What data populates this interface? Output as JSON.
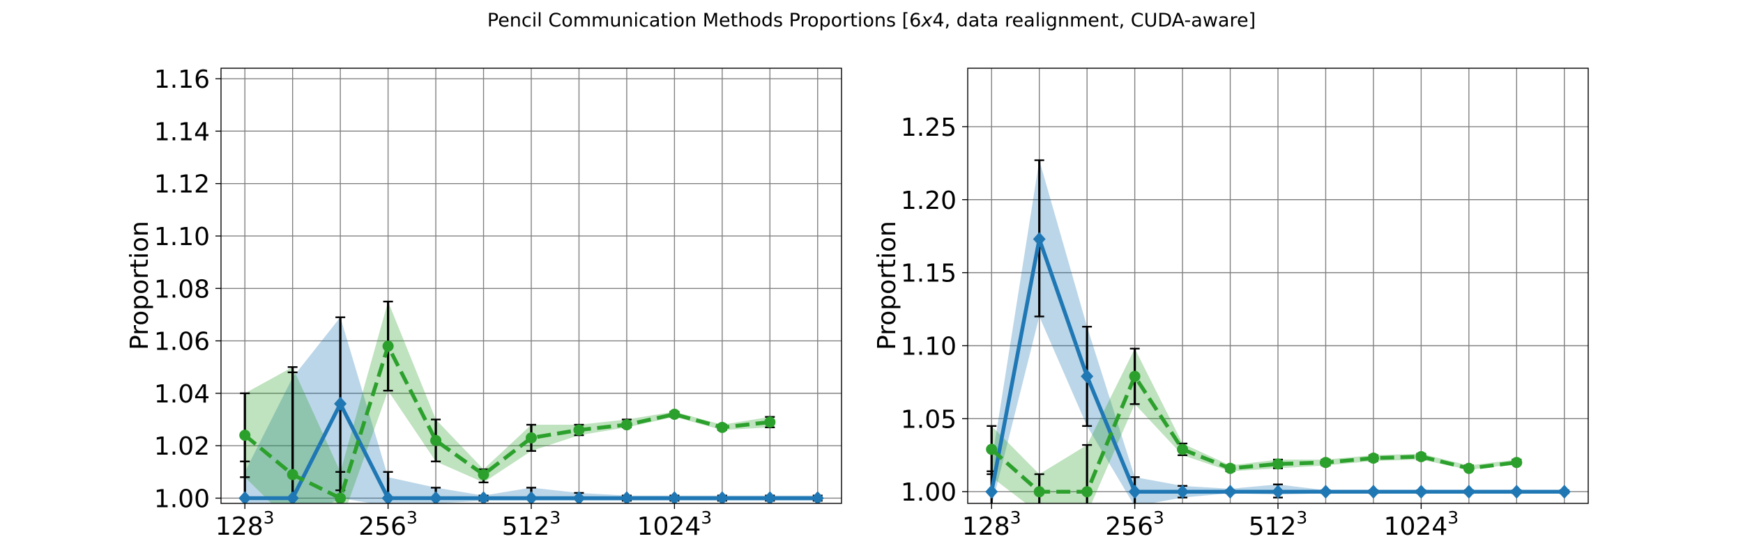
{
  "title": "Pencil Communication Methods Proportions [6x4, data realignment, CUDA-aware]",
  "title_parts": {
    "before": "Pencil Communication Methods Proportions [6",
    "times": "x",
    "after": "4, data realignment, CUDA-aware]"
  },
  "colors": {
    "series_a": "#1f77b4",
    "series_b": "#2ca02c",
    "errorbar": "#000000",
    "grid": "#808080"
  },
  "chart_data": [
    {
      "type": "line",
      "ylabel": "Proportion",
      "xlabel": "",
      "grid": true,
      "xlim": [
        -0.5,
        12.5
      ],
      "ylim": [
        0.998,
        1.164
      ],
      "x_ticks": [
        {
          "pos": 0,
          "base": "128",
          "exp": "3"
        },
        {
          "pos": 3,
          "base": "256",
          "exp": "3"
        },
        {
          "pos": 6,
          "base": "512",
          "exp": "3"
        },
        {
          "pos": 9,
          "base": "1024",
          "exp": "3"
        }
      ],
      "x_gridlines": [
        0,
        1,
        2,
        3,
        4,
        5,
        6,
        7,
        8,
        9,
        10,
        11,
        12
      ],
      "y_ticks": [
        "1.00",
        "1.02",
        "1.04",
        "1.06",
        "1.08",
        "1.10",
        "1.12",
        "1.14",
        "1.16"
      ],
      "series": [
        {
          "color": "blue",
          "marker": "diamond",
          "linestyle": "solid",
          "x": [
            0,
            1,
            2,
            3,
            4,
            5,
            6,
            7,
            8,
            9,
            10,
            11,
            12
          ],
          "y": [
            1.0,
            1.0,
            1.036,
            1.0,
            1.0,
            1.0,
            1.0,
            1.0,
            1.0,
            1.0,
            1.0,
            1.0,
            1.0
          ],
          "band_low": [
            0.99,
            0.99,
            1.0,
            0.997,
            0.998,
            0.999,
            0.999,
            0.999,
            0.999,
            0.999,
            0.999,
            0.999,
            0.999
          ],
          "band_high": [
            1.01,
            1.046,
            1.069,
            1.008,
            1.004,
            1.001,
            1.004,
            1.002,
            1.001,
            1.001,
            1.001,
            1.001,
            1.001
          ],
          "err_low": [
            0.986,
            0.986,
            1.003,
            0.99,
            0.996,
            0.999,
            0.996,
            0.997,
            0.999,
            0.999,
            0.999,
            0.999,
            0.999
          ],
          "err_high": [
            1.014,
            1.048,
            1.069,
            1.01,
            1.004,
            1.001,
            1.004,
            1.002,
            1.001,
            1.001,
            1.001,
            1.001,
            1.001
          ]
        },
        {
          "color": "green",
          "marker": "circle",
          "linestyle": "dashed",
          "x": [
            0,
            1,
            2,
            3,
            4,
            5,
            6,
            7,
            8,
            9,
            10,
            11
          ],
          "y": [
            1.024,
            1.009,
            1.0,
            1.058,
            1.022,
            1.009,
            1.023,
            1.026,
            1.028,
            1.032,
            1.027,
            1.029
          ],
          "band_low": [
            1.008,
            0.99,
            0.99,
            1.041,
            1.014,
            1.006,
            1.018,
            1.024,
            1.027,
            1.031,
            1.026,
            1.027
          ],
          "band_high": [
            1.04,
            1.05,
            1.01,
            1.075,
            1.03,
            1.011,
            1.028,
            1.028,
            1.03,
            1.033,
            1.028,
            1.031
          ],
          "err_low": [
            1.008,
            0.983,
            0.99,
            1.041,
            1.014,
            1.006,
            1.018,
            1.024,
            1.027,
            1.031,
            1.026,
            1.027
          ],
          "err_high": [
            1.04,
            1.05,
            1.01,
            1.075,
            1.03,
            1.011,
            1.028,
            1.028,
            1.03,
            1.033,
            1.028,
            1.031
          ]
        }
      ]
    },
    {
      "type": "line",
      "ylabel": "Proportion",
      "xlabel": "",
      "grid": true,
      "xlim": [
        -0.5,
        12.5
      ],
      "ylim": [
        0.992,
        1.29
      ],
      "x_ticks": [
        {
          "pos": 0,
          "base": "128",
          "exp": "3"
        },
        {
          "pos": 3,
          "base": "256",
          "exp": "3"
        },
        {
          "pos": 6,
          "base": "512",
          "exp": "3"
        },
        {
          "pos": 9,
          "base": "1024",
          "exp": "3"
        }
      ],
      "x_gridlines": [
        0,
        1,
        2,
        3,
        4,
        5,
        6,
        7,
        8,
        9,
        10,
        11,
        12
      ],
      "y_ticks": [
        "1.00",
        "1.05",
        "1.10",
        "1.15",
        "1.20",
        "1.25"
      ],
      "series": [
        {
          "color": "blue",
          "marker": "diamond",
          "linestyle": "solid",
          "x": [
            0,
            1,
            2,
            3,
            4,
            5,
            6,
            7,
            8,
            9,
            10,
            11,
            12
          ],
          "y": [
            1.0,
            1.173,
            1.079,
            1.0,
            1.0,
            1.0,
            1.0,
            1.0,
            1.0,
            1.0,
            1.0,
            1.0,
            1.0
          ],
          "band_low": [
            0.99,
            1.12,
            1.045,
            0.99,
            0.996,
            0.999,
            0.998,
            0.999,
            0.999,
            0.999,
            0.999,
            0.999,
            0.999
          ],
          "band_high": [
            1.02,
            1.227,
            1.113,
            1.01,
            1.004,
            1.002,
            1.005,
            1.001,
            1.001,
            1.001,
            1.001,
            1.001,
            1.001
          ],
          "err_low": [
            0.985,
            1.12,
            1.045,
            0.99,
            0.996,
            0.999,
            0.996,
            0.999,
            0.999,
            0.999,
            0.999,
            0.999,
            0.999
          ],
          "err_high": [
            1.014,
            1.227,
            1.113,
            1.01,
            1.004,
            1.001,
            1.005,
            1.001,
            1.001,
            1.001,
            1.001,
            1.001,
            1.001
          ]
        },
        {
          "color": "green",
          "marker": "circle",
          "linestyle": "dashed",
          "x": [
            0,
            1,
            2,
            3,
            4,
            5,
            6,
            7,
            8,
            9,
            10,
            11
          ],
          "y": [
            1.029,
            1.0,
            1.0,
            1.079,
            1.029,
            1.016,
            1.019,
            1.02,
            1.023,
            1.024,
            1.016,
            1.02
          ],
          "band_low": [
            1.01,
            0.985,
            0.985,
            1.06,
            1.025,
            1.014,
            1.016,
            1.018,
            1.021,
            1.022,
            1.015,
            1.019
          ],
          "band_high": [
            1.045,
            1.012,
            1.032,
            1.098,
            1.033,
            1.018,
            1.022,
            1.022,
            1.025,
            1.026,
            1.018,
            1.022
          ],
          "err_low": [
            1.012,
            0.988,
            0.988,
            1.06,
            1.025,
            1.014,
            1.016,
            1.018,
            1.021,
            1.022,
            1.015,
            1.019
          ],
          "err_high": [
            1.045,
            1.012,
            1.032,
            1.098,
            1.033,
            1.018,
            1.022,
            1.022,
            1.025,
            1.026,
            1.018,
            1.022
          ]
        }
      ]
    }
  ]
}
